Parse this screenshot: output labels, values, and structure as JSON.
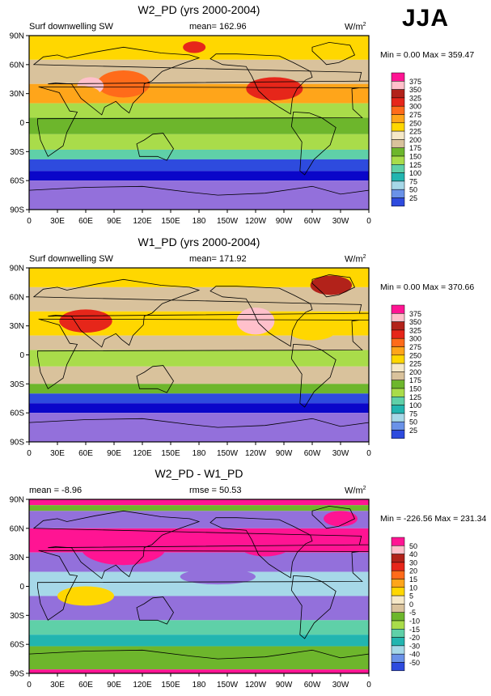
{
  "season_label": "JJA",
  "contour_colors": [
    "#9370db",
    "#0a06c9",
    "#2e4bde",
    "#6a92e8",
    "#a6d8e8",
    "#22b5b0",
    "#5fd0a8",
    "#a9dc4a",
    "#6db62c",
    "#d9c29c",
    "#f5e8c8",
    "#ffd700",
    "#ffa51a",
    "#ff6b1a",
    "#e6261a",
    "#b2221a",
    "#ffc0cb",
    "#ff1493"
  ],
  "axis_ticks": {
    "x": [
      "0",
      "30E",
      "60E",
      "90E",
      "120E",
      "150E",
      "180",
      "150W",
      "120W",
      "90W",
      "60W",
      "30W",
      "0"
    ],
    "y": [
      "90N",
      "60N",
      "30N",
      "0",
      "30S",
      "60S",
      "90S"
    ]
  },
  "chart_data": [
    {
      "type": "heatmap",
      "title": "W2_PD (yrs 2000-2004)",
      "variable_label": "Surf downwelling SW",
      "stat_label": "mean= 162.96",
      "stat2_label": "",
      "units_label": "W/m",
      "units_power": "2",
      "minmax_label": "Min =   0.00 Max = 359.47",
      "mean": 162.96,
      "min": 0.0,
      "max": 359.47,
      "levels": [
        "375",
        "350",
        "325",
        "300",
        "275",
        "250",
        "225",
        "200",
        "175",
        "150",
        "125",
        "100",
        "75",
        "50",
        "25"
      ]
    },
    {
      "type": "heatmap",
      "title": "W1_PD (yrs 2000-2004)",
      "variable_label": "Surf downwelling SW",
      "stat_label": "mean= 171.92",
      "stat2_label": "",
      "units_label": "W/m",
      "units_power": "2",
      "minmax_label": "Min =   0.00 Max = 370.66",
      "mean": 171.92,
      "min": 0.0,
      "max": 370.66,
      "levels": [
        "375",
        "350",
        "325",
        "300",
        "275",
        "250",
        "225",
        "200",
        "175",
        "150",
        "125",
        "100",
        "75",
        "50",
        "25"
      ]
    },
    {
      "type": "heatmap",
      "title": "W2_PD - W1_PD",
      "variable_label": "",
      "stat_label": "mean =  -8.96",
      "stat2_label": "rmse =  50.53",
      "units_label": "W/m",
      "units_power": "2",
      "minmax_label": "Min = -226.56 Max = 231.34",
      "mean": -8.96,
      "rmse": 50.53,
      "min": -226.56,
      "max": 231.34,
      "levels": [
        "50",
        "40",
        "30",
        "20",
        "15",
        "10",
        "5",
        "0",
        "-5",
        "-10",
        "-15",
        "-20",
        "-30",
        "-40",
        "-50"
      ]
    }
  ]
}
